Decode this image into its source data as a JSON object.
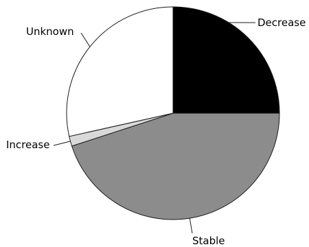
{
  "chart_data": {
    "type": "pie",
    "title": "",
    "start_angle_deg": 0,
    "direction": "clockwise",
    "slices": [
      {
        "label": "Decrease",
        "value": 25.0,
        "color": "#000000"
      },
      {
        "label": "Stable",
        "value": 45.0,
        "color": "#8c8c8c"
      },
      {
        "label": "Increase",
        "value": 1.5,
        "color": "#d9d9d9"
      },
      {
        "label": "Unknown",
        "value": 28.5,
        "color": "#ffffff"
      }
    ]
  }
}
